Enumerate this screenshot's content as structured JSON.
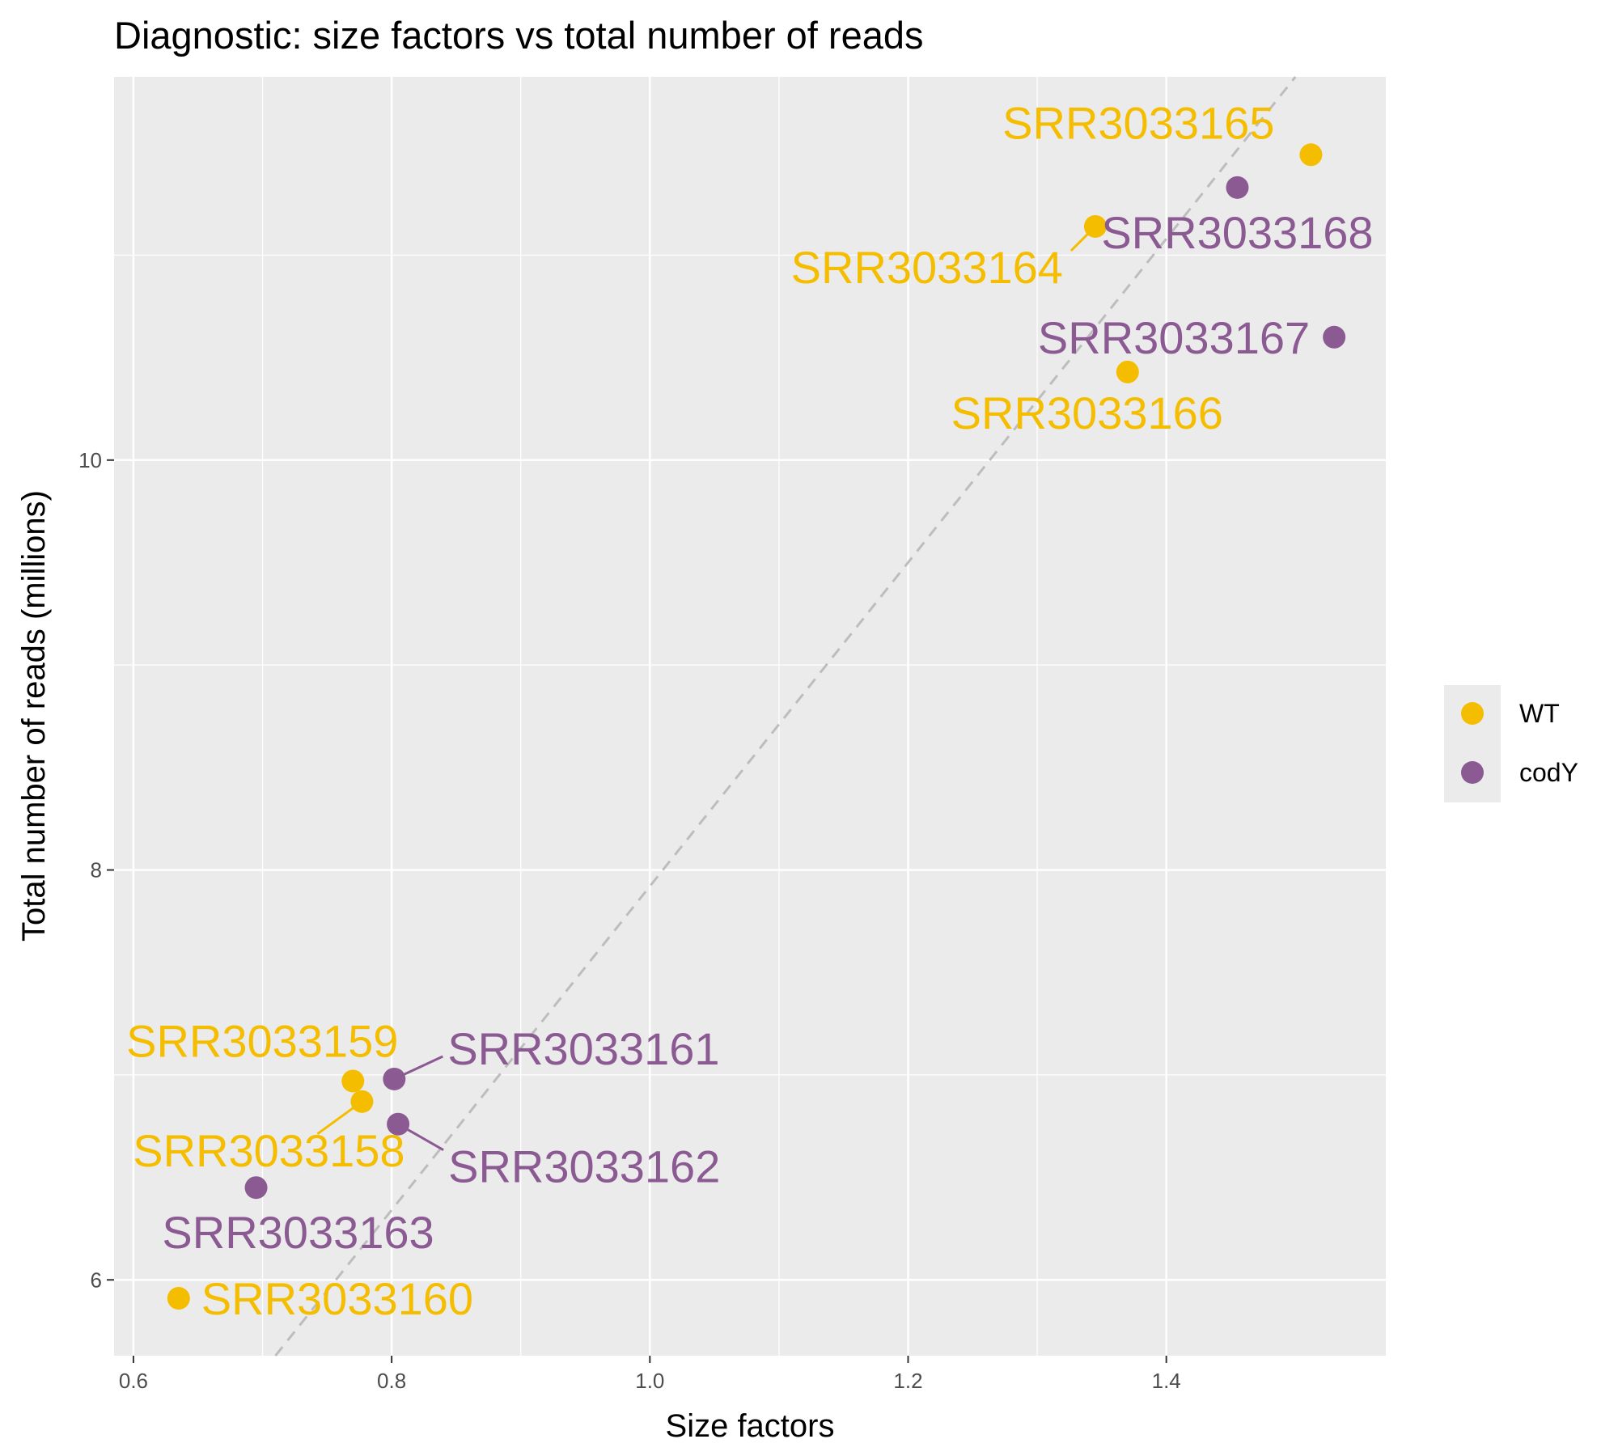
{
  "chart_data": {
    "type": "scatter",
    "title": "Diagnostic: size factors vs total number of reads",
    "xlabel": "Size factors",
    "ylabel": "Total number of reads (millions)",
    "xlim": [
      0.585,
      1.57
    ],
    "ylim": [
      5.63,
      11.87
    ],
    "x_ticks": [
      0.6,
      0.8,
      1.0,
      1.2,
      1.4
    ],
    "x_tick_labels": [
      "0.6",
      "0.8",
      "1.0",
      "1.2",
      "1.4"
    ],
    "y_ticks": [
      6,
      8,
      10
    ],
    "y_tick_labels": [
      "6",
      "8",
      "10"
    ],
    "grid": true,
    "legend_position": "right",
    "reference_line": {
      "style": "dashed",
      "color": "#bdbdbd",
      "points": [
        [
          0.71,
          5.63
        ],
        [
          1.5,
          11.87
        ]
      ]
    },
    "series": [
      {
        "name": "WT",
        "color": "#f5bd00",
        "points": [
          {
            "label": "SRR3033165",
            "x": 1.512,
            "y": 11.49
          },
          {
            "label": "SRR3033164",
            "x": 1.345,
            "y": 11.14
          },
          {
            "label": "SRR3033166",
            "x": 1.37,
            "y": 10.43
          },
          {
            "label": "SRR3033159",
            "x": 0.77,
            "y": 6.97
          },
          {
            "label": "SRR3033158",
            "x": 0.777,
            "y": 6.87
          },
          {
            "label": "SRR3033160",
            "x": 0.635,
            "y": 5.91
          }
        ]
      },
      {
        "name": "codY",
        "color": "#8b5a93",
        "points": [
          {
            "label": "SRR3033168",
            "x": 1.455,
            "y": 11.33
          },
          {
            "label": "SRR3033167",
            "x": 1.53,
            "y": 10.6
          },
          {
            "label": "SRR3033161",
            "x": 0.802,
            "y": 6.98
          },
          {
            "label": "SRR3033162",
            "x": 0.805,
            "y": 6.76
          },
          {
            "label": "SRR3033163",
            "x": 0.695,
            "y": 6.45
          }
        ]
      }
    ]
  }
}
